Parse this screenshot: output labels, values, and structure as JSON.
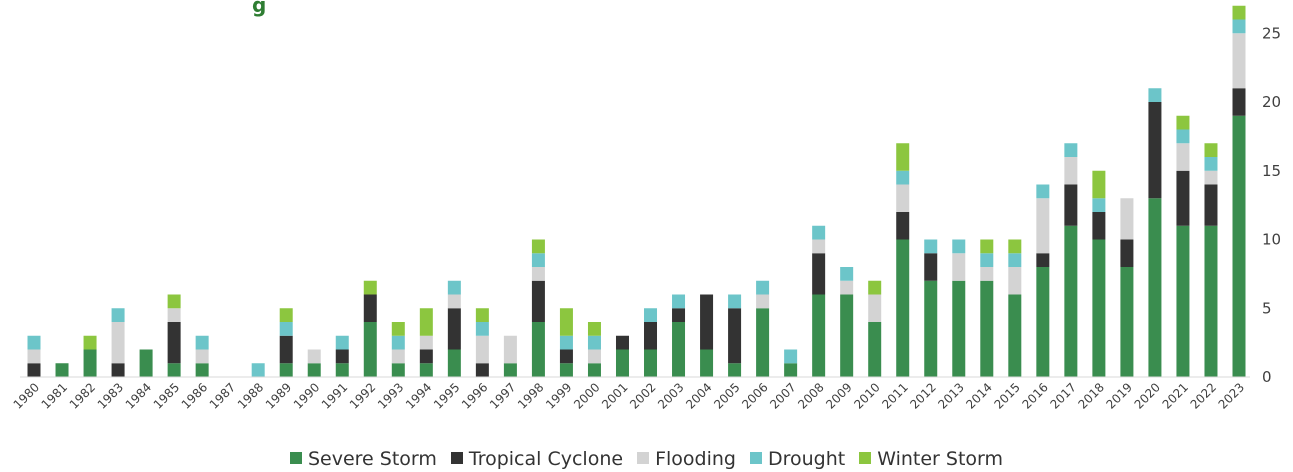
{
  "chart_data": {
    "type": "bar",
    "stacked": true,
    "title": "",
    "title_fragment": "g",
    "xlabel": "",
    "ylabel": "",
    "ylim": [
      0,
      26
    ],
    "y_ticks": [
      0,
      5,
      10,
      15,
      20,
      25
    ],
    "y_axis_side": "right",
    "grid": false,
    "legend_position": "bottom",
    "categories": [
      "1980",
      "1981",
      "1982",
      "1983",
      "1984",
      "1985",
      "1986",
      "1987",
      "1988",
      "1989",
      "1990",
      "1991",
      "1992",
      "1993",
      "1994",
      "1995",
      "1996",
      "1997",
      "1998",
      "1999",
      "2000",
      "2001",
      "2002",
      "2003",
      "2004",
      "2005",
      "2006",
      "2007",
      "2008",
      "2009",
      "2010",
      "2011",
      "2012",
      "2013",
      "2014",
      "2015",
      "2016",
      "2017",
      "2018",
      "2019",
      "2020",
      "2021",
      "2022",
      "2023"
    ],
    "series": [
      {
        "name": "Severe Storm",
        "color": "#3a8d4f",
        "values": [
          0,
          1,
          2,
          0,
          2,
          1,
          1,
          0,
          0,
          1,
          1,
          1,
          4,
          1,
          1,
          2,
          0,
          1,
          4,
          1,
          1,
          2,
          2,
          4,
          2,
          1,
          5,
          1,
          6,
          6,
          4,
          10,
          7,
          7,
          7,
          6,
          8,
          11,
          10,
          8,
          13,
          11,
          11,
          19
        ]
      },
      {
        "name": "Tropical Cyclone",
        "color": "#333333",
        "values": [
          1,
          0,
          0,
          1,
          0,
          3,
          0,
          0,
          0,
          2,
          0,
          1,
          2,
          0,
          1,
          3,
          1,
          0,
          3,
          1,
          0,
          1,
          2,
          1,
          4,
          4,
          0,
          0,
          3,
          0,
          0,
          2,
          2,
          0,
          0,
          0,
          1,
          3,
          2,
          2,
          7,
          4,
          3,
          2
        ]
      },
      {
        "name": "Flooding",
        "color": "#d3d3d3",
        "values": [
          1,
          0,
          0,
          3,
          0,
          1,
          1,
          0,
          0,
          0,
          1,
          0,
          0,
          1,
          1,
          1,
          2,
          2,
          1,
          0,
          1,
          0,
          0,
          0,
          0,
          0,
          1,
          0,
          1,
          1,
          2,
          2,
          0,
          2,
          1,
          2,
          4,
          2,
          0,
          3,
          0,
          2,
          1,
          4
        ]
      },
      {
        "name": "Drought",
        "color": "#6cc5c9",
        "values": [
          1,
          0,
          0,
          1,
          0,
          0,
          1,
          0,
          1,
          1,
          0,
          1,
          0,
          1,
          0,
          1,
          1,
          0,
          1,
          1,
          1,
          0,
          1,
          1,
          0,
          1,
          1,
          1,
          1,
          1,
          0,
          1,
          1,
          1,
          1,
          1,
          1,
          1,
          1,
          0,
          1,
          1,
          1,
          1
        ]
      },
      {
        "name": "Winter Storm",
        "color": "#8cc63f",
        "values": [
          0,
          0,
          1,
          0,
          0,
          1,
          0,
          0,
          0,
          1,
          0,
          0,
          1,
          1,
          2,
          0,
          1,
          0,
          1,
          2,
          1,
          0,
          0,
          0,
          0,
          0,
          0,
          0,
          0,
          0,
          1,
          2,
          0,
          0,
          1,
          1,
          0,
          0,
          2,
          0,
          0,
          1,
          1,
          1
        ]
      }
    ]
  }
}
